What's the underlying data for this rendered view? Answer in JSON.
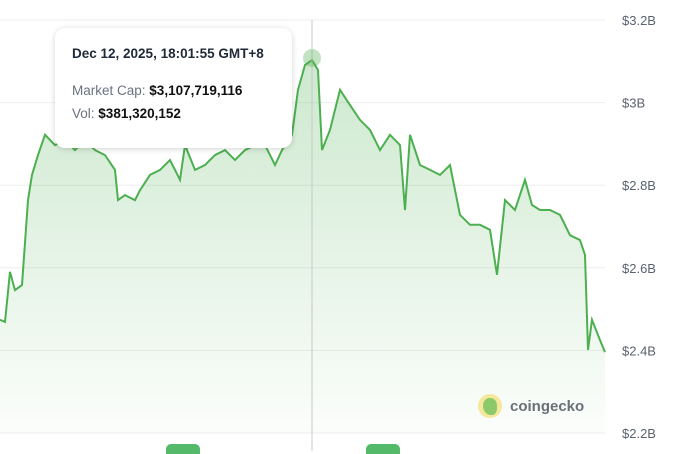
{
  "chart_data": {
    "type": "area",
    "title": "",
    "xlabel": "",
    "ylabel": "Market Cap",
    "ylim": [
      2.2,
      3.2
    ],
    "xlim": [
      0,
      24.2
    ],
    "x_unit": "hours",
    "y_ticks": [
      3.2,
      3.0,
      2.8,
      2.6,
      2.4,
      2.2
    ],
    "y_tick_labels": [
      "$3.2B",
      "$3B",
      "$2.8B",
      "$2.6B",
      "$2.4B",
      "$2.2B"
    ],
    "grid": true,
    "line_color": "#4caf50",
    "series": [
      {
        "name": "Market Cap (B USD)",
        "x": [
          0,
          0.2,
          0.4,
          0.6,
          0.88,
          1.12,
          1.28,
          1.52,
          1.8,
          2.2,
          2.6,
          3,
          3.4,
          3.8,
          4.2,
          4.6,
          4.72,
          5,
          5.4,
          5.6,
          6,
          6.4,
          6.8,
          7.2,
          7.4,
          7.8,
          8.2,
          8.6,
          9,
          9.4,
          9.8,
          10.2,
          10.6,
          11,
          11.28,
          11.68,
          11.92,
          12.2,
          12.48,
          12.72,
          12.88,
          13.2,
          13.6,
          14,
          14.4,
          14.8,
          15.2,
          15.6,
          16,
          16.2,
          16.4,
          16.8,
          17.2,
          17.6,
          18,
          18.4,
          18.8,
          19.2,
          19.6,
          19.88,
          20.2,
          20.6,
          21,
          21.28,
          21.6,
          22,
          22.4,
          22.8,
          23.2,
          23.4,
          23.52,
          23.68,
          24,
          24.2
        ],
        "values": [
          2.474,
          2.469,
          2.59,
          2.546,
          2.558,
          2.764,
          2.825,
          2.873,
          2.922,
          2.897,
          2.909,
          2.885,
          2.909,
          2.885,
          2.873,
          2.837,
          2.764,
          2.776,
          2.764,
          2.788,
          2.825,
          2.837,
          2.861,
          2.813,
          2.897,
          2.837,
          2.849,
          2.873,
          2.885,
          2.861,
          2.885,
          2.897,
          2.897,
          2.849,
          2.885,
          2.922,
          3.031,
          3.091,
          3.103,
          3.079,
          2.885,
          2.934,
          3.031,
          2.994,
          2.958,
          2.934,
          2.885,
          2.922,
          2.897,
          2.74,
          2.922,
          2.849,
          2.837,
          2.825,
          2.849,
          2.728,
          2.704,
          2.704,
          2.692,
          2.583,
          2.764,
          2.74,
          2.813,
          2.752,
          2.74,
          2.74,
          2.728,
          2.679,
          2.667,
          2.631,
          2.401,
          2.474,
          2.425,
          2.396
        ]
      }
    ],
    "hover_x": 12.48,
    "hover_value": 3.108
  },
  "tooltip": {
    "date": "Dec 12, 2025, 18:01:55 GMT+8",
    "market_cap_label": "Market Cap:",
    "market_cap_value": "$3,107,719,116",
    "vol_label": "Vol:",
    "vol_value": "$381,320,152"
  },
  "watermark": "coingecko"
}
